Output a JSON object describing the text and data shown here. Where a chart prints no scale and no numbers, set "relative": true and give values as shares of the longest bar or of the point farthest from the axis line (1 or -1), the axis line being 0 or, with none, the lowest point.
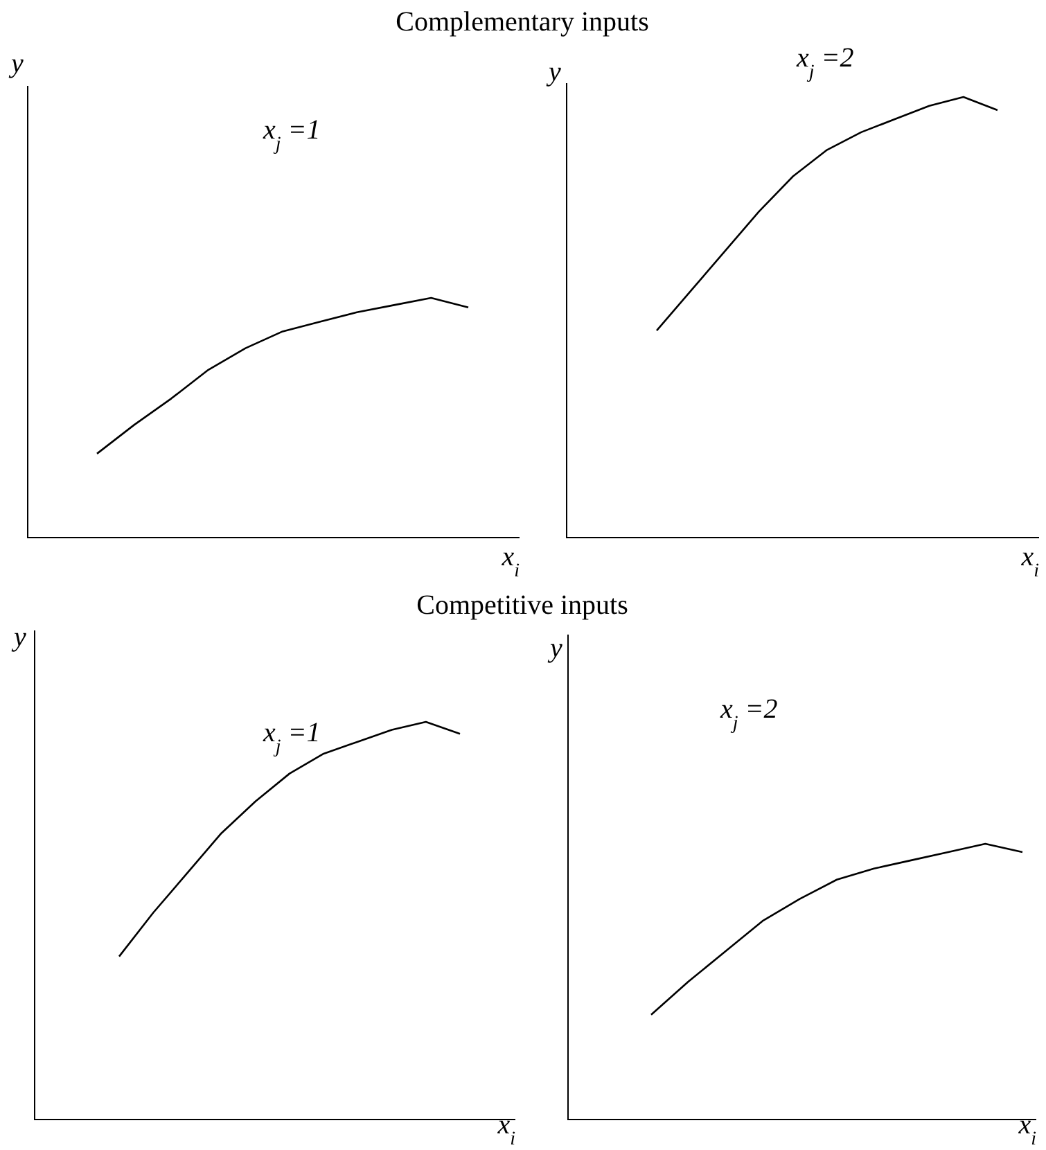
{
  "chart_data": [
    {
      "type": "line",
      "title": "Complementary inputs",
      "xlabel": "x$_{i}$",
      "ylabel": "y",
      "annotations": [
        "x$_{j}$ =1"
      ],
      "relative": true,
      "categories": [
        null,
        null,
        null,
        null,
        null,
        null,
        null,
        null,
        null,
        null,
        null
      ],
      "series": [
        {
          "color": "#000000",
          "values": [
            0.35,
            0.47,
            0.58,
            0.7,
            0.79,
            0.86,
            0.9,
            0.94,
            0.97,
            1.0,
            0.96
          ]
        }
      ]
    },
    {
      "type": "line",
      "xlabel": "x$_{i}$",
      "ylabel": "y",
      "annotations": [
        "x$_{j}$ =2"
      ],
      "relative": true,
      "categories": [
        null,
        null,
        null,
        null,
        null,
        null,
        null,
        null,
        null,
        null,
        null
      ],
      "series": [
        {
          "color": "#000000",
          "values": [
            0.47,
            0.56,
            0.65,
            0.74,
            0.82,
            0.88,
            0.92,
            0.95,
            0.98,
            1.0,
            0.97
          ]
        }
      ]
    },
    {
      "type": "line",
      "title": "Competitive inputs",
      "xlabel": "x$_{i}$",
      "ylabel": "y",
      "annotations": [
        "x$_{j}$ =1"
      ],
      "relative": true,
      "categories": [
        null,
        null,
        null,
        null,
        null,
        null,
        null,
        null,
        null,
        null,
        null
      ],
      "series": [
        {
          "color": "#000000",
          "values": [
            0.41,
            0.52,
            0.62,
            0.72,
            0.8,
            0.87,
            0.92,
            0.95,
            0.98,
            1.0,
            0.97
          ]
        }
      ]
    },
    {
      "type": "line",
      "xlabel": "x$_{i}$",
      "ylabel": "y",
      "annotations": [
        "x$_{j}$ =2"
      ],
      "relative": true,
      "categories": [
        null,
        null,
        null,
        null,
        null,
        null,
        null,
        null,
        null,
        null,
        null
      ],
      "series": [
        {
          "color": "#000000",
          "values": [
            0.38,
            0.5,
            0.61,
            0.72,
            0.8,
            0.87,
            0.91,
            0.94,
            0.97,
            1.0,
            0.97
          ]
        }
      ]
    }
  ]
}
